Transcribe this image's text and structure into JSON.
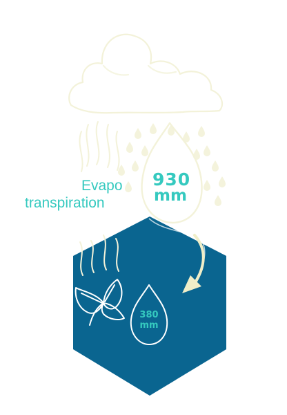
{
  "colors": {
    "hexagon_fill": "#0a6590",
    "label_teal": "#35c9bf",
    "sketch_cream": "#f3f2d9",
    "arrow_cream": "#f0eec8",
    "white_outline": "#ffffff"
  },
  "labels": {
    "evapo_line1": "Evapo",
    "evapo_line2": "transpiration",
    "rain_amount": "930",
    "rain_unit": "mm",
    "infiltration_amount": "380",
    "infiltration_unit": "mm"
  },
  "icons": {
    "cloud": "cloud-icon",
    "rain": "raindrops-icon",
    "big_drop": "large-drop-icon",
    "small_drop": "small-drop-icon",
    "leaf": "leaf-icon",
    "hexagon": "hexagon-shape",
    "arrow": "curved-arrow-icon",
    "steam": "evaporation-wisps-icon"
  }
}
